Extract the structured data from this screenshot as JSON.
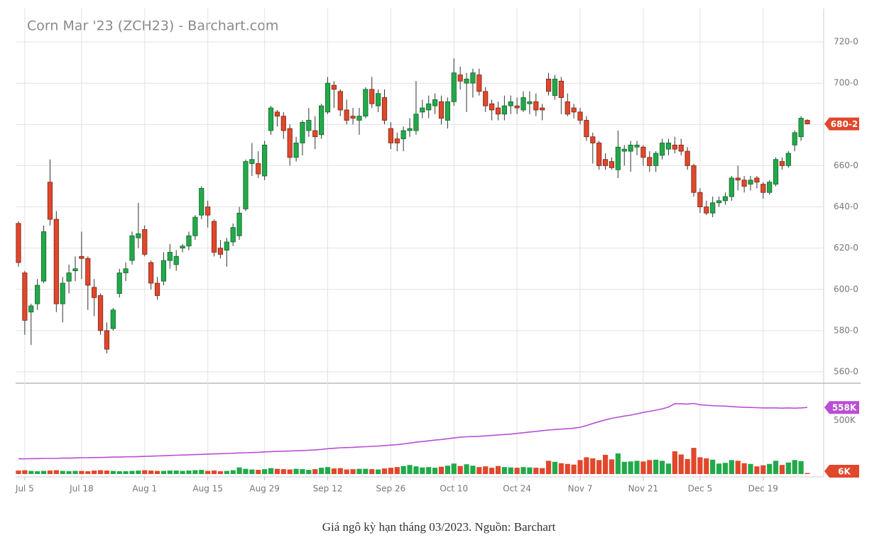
{
  "chart_data": {
    "type": "candlestick",
    "title": "Corn Mar '23 (ZCH23) - Barchart.com",
    "categories": [
      null,
      "Jul 5",
      null,
      null,
      null,
      null,
      null,
      null,
      null,
      null,
      "Jul 18",
      null,
      null,
      null,
      null,
      null,
      null,
      null,
      null,
      null,
      "Aug 1",
      null,
      null,
      null,
      null,
      null,
      null,
      null,
      null,
      null,
      "Aug 15",
      null,
      null,
      null,
      null,
      null,
      null,
      null,
      null,
      "Aug 29",
      null,
      null,
      null,
      null,
      null,
      null,
      null,
      null,
      null,
      "Sep 12",
      null,
      null,
      null,
      null,
      null,
      null,
      null,
      null,
      null,
      "Sep 26",
      null,
      null,
      null,
      null,
      null,
      null,
      null,
      null,
      null,
      "Oct 10",
      null,
      null,
      null,
      null,
      null,
      null,
      null,
      null,
      null,
      "Oct 24",
      null,
      null,
      null,
      null,
      null,
      null,
      null,
      null,
      null,
      "Nov 7",
      null,
      null,
      null,
      null,
      null,
      null,
      null,
      null,
      null,
      "Nov 21",
      null,
      null,
      null,
      null,
      null,
      null,
      null,
      null,
      "Dec 5",
      null,
      null,
      null,
      null,
      null,
      null,
      null,
      null,
      null,
      "Dec 19",
      null,
      null,
      null,
      null,
      null,
      null,
      null
    ],
    "open": [
      632,
      608,
      589,
      593,
      604,
      652,
      634,
      593,
      604,
      609,
      616,
      615,
      601,
      597,
      580,
      581,
      598,
      608,
      614,
      625,
      629,
      613,
      603,
      604,
      614,
      612,
      620,
      621,
      626,
      636,
      640,
      633,
      620,
      619,
      623,
      626,
      639,
      661,
      661,
      655,
      677,
      686,
      684,
      678,
      664,
      671,
      677,
      677,
      675,
      686,
      699,
      696,
      687,
      684,
      682,
      684,
      697,
      689,
      693,
      678,
      673,
      673,
      677,
      677,
      686,
      687,
      689,
      691,
      682,
      691,
      704,
      700,
      700,
      704,
      696,
      690,
      688,
      685,
      689,
      689,
      687,
      690,
      691,
      688,
      702,
      694,
      701,
      691,
      688,
      686,
      682,
      674,
      671,
      663,
      662,
      658,
      667,
      667,
      669,
      669,
      664,
      660,
      665,
      668,
      670,
      670,
      667,
      660,
      647,
      640,
      637,
      642,
      643,
      645,
      654,
      653,
      651,
      654,
      651,
      647,
      651,
      662,
      660,
      670,
      674,
      682
    ],
    "high": [
      633,
      609,
      593,
      605,
      631,
      663,
      638,
      606,
      612,
      616,
      628,
      616,
      605,
      598,
      584,
      591,
      610,
      613,
      628,
      642,
      631,
      614,
      606,
      618,
      622,
      619,
      622,
      628,
      636,
      650,
      643,
      634,
      624,
      625,
      632,
      640,
      663,
      671,
      667,
      672,
      689,
      687,
      686,
      680,
      674,
      682,
      688,
      684,
      690,
      703,
      701,
      697,
      692,
      688,
      688,
      698,
      703,
      697,
      697,
      681,
      676,
      679,
      683,
      701,
      692,
      694,
      695,
      694,
      693,
      712,
      708,
      705,
      707,
      707,
      698,
      692,
      691,
      694,
      694,
      693,
      696,
      696,
      695,
      690,
      705,
      704,
      703,
      695,
      690,
      688,
      684,
      676,
      672,
      666,
      664,
      677,
      670,
      672,
      672,
      670,
      667,
      667,
      673,
      673,
      674,
      673,
      669,
      661,
      649,
      643,
      645,
      645,
      647,
      655,
      660,
      655,
      655,
      655,
      652,
      653,
      664,
      664,
      667,
      677,
      684,
      682.5
    ],
    "low": [
      611,
      578,
      573,
      590,
      603,
      631,
      589,
      584,
      598,
      604,
      605,
      590,
      587,
      578,
      569,
      580,
      596,
      604,
      612,
      620,
      616,
      600,
      595,
      602,
      610,
      609,
      618,
      619,
      624,
      634,
      630,
      616,
      615,
      611,
      621,
      624,
      638,
      655,
      654,
      653,
      675,
      679,
      673,
      660,
      662,
      665,
      674,
      668,
      673,
      685,
      688,
      684,
      680,
      680,
      675,
      683,
      688,
      686,
      680,
      668,
      667,
      667,
      674,
      675,
      683,
      683,
      685,
      680,
      678,
      689,
      697,
      686,
      693,
      694,
      686,
      682,
      682,
      682,
      685,
      685,
      686,
      685,
      684,
      682,
      694,
      692,
      685,
      684,
      683,
      680,
      672,
      661,
      658,
      658,
      658,
      654,
      660,
      657,
      665,
      660,
      657,
      657,
      663,
      665,
      666,
      665,
      658,
      645,
      637,
      636,
      635,
      640,
      641,
      643,
      648,
      647,
      648,
      649,
      644,
      646,
      650,
      658,
      659,
      667,
      672,
      680
    ],
    "close": [
      613,
      585,
      592,
      602,
      628,
      634,
      593,
      603,
      608,
      610,
      615,
      602,
      596,
      580,
      571,
      590,
      608,
      610,
      626,
      627,
      617,
      603,
      597,
      614,
      618,
      616,
      621,
      626,
      635,
      649,
      636,
      618,
      617,
      623,
      630,
      637,
      662,
      663,
      656,
      670,
      688,
      684,
      677,
      664,
      671,
      681,
      682,
      674,
      689,
      700,
      697,
      687,
      682,
      683,
      684,
      697,
      690,
      695,
      682,
      671,
      671,
      677,
      678,
      685,
      688,
      690,
      692,
      683,
      691,
      705,
      701,
      702,
      705,
      696,
      689,
      687,
      685,
      689,
      691,
      688,
      693,
      691,
      687,
      687,
      696,
      702,
      693,
      685,
      686,
      682,
      674,
      671,
      660,
      660,
      659,
      669,
      668,
      670,
      670,
      664,
      660,
      666,
      671,
      671,
      668,
      667,
      660,
      647,
      640,
      637,
      642,
      643,
      645,
      654,
      653,
      650,
      653,
      652,
      647,
      652,
      663,
      660,
      666,
      676,
      683,
      680.25
    ],
    "value_labels": [
      null,
      null,
      null,
      null,
      null,
      null,
      null,
      null,
      null,
      null,
      null,
      null,
      null,
      null,
      null,
      null,
      null,
      null,
      null,
      null,
      null,
      null,
      null,
      null,
      null,
      null,
      null,
      null,
      null,
      null,
      null,
      null,
      null,
      null,
      null,
      null,
      null,
      null,
      null,
      null,
      null,
      null,
      null,
      null,
      null,
      null,
      null,
      null,
      null,
      null,
      null,
      null,
      null,
      null,
      null,
      null,
      null,
      null,
      null,
      null,
      null,
      null,
      null,
      null,
      null,
      null,
      null,
      null,
      null,
      null,
      null,
      null,
      null,
      null,
      null,
      null,
      null,
      null,
      null,
      null,
      null,
      null,
      null,
      null,
      null,
      null,
      null,
      null,
      null,
      null,
      null,
      null,
      null,
      null,
      null,
      null,
      null,
      null,
      null,
      null,
      null,
      null,
      null,
      null,
      null,
      null,
      null,
      null,
      null,
      null,
      null,
      null,
      null,
      null,
      null,
      null,
      null,
      null,
      null,
      null,
      null,
      null,
      null,
      null,
      null,
      "680-2"
    ],
    "up_color": "#22a94a",
    "down_color": "#e0472b",
    "ylim": [
      554.5,
      736.2
    ],
    "yticks": [
      {
        "value": 560,
        "label": "560-0"
      },
      {
        "value": 580,
        "label": "580-0"
      },
      {
        "value": 600,
        "label": "600-0"
      },
      {
        "value": 620,
        "label": "620-0"
      },
      {
        "value": 640,
        "label": "640-0"
      },
      {
        "value": 660,
        "label": "660-0"
      },
      {
        "value": 680,
        "label": "680-0"
      },
      {
        "value": 700,
        "label": "700-0"
      },
      {
        "value": 720,
        "label": "720-0"
      }
    ],
    "grid": true,
    "volume": {
      "values": [
        20,
        22,
        18,
        16,
        18,
        20,
        22,
        18,
        16,
        18,
        18,
        16,
        20,
        22,
        20,
        18,
        16,
        16,
        18,
        20,
        22,
        20,
        18,
        18,
        20,
        20,
        18,
        20,
        22,
        24,
        18,
        20,
        16,
        18,
        22,
        38,
        30,
        26,
        24,
        28,
        34,
        30,
        28,
        26,
        30,
        28,
        24,
        28,
        36,
        40,
        32,
        34,
        26,
        28,
        30,
        30,
        28,
        26,
        32,
        36,
        40,
        46,
        52,
        44,
        38,
        40,
        36,
        42,
        48,
        60,
        46,
        56,
        48,
        40,
        44,
        36,
        46,
        40,
        38,
        36,
        40,
        38,
        36,
        34,
        76,
        70,
        62,
        58,
        54,
        80,
        96,
        90,
        80,
        110,
        84,
        118,
        70,
        72,
        76,
        72,
        80,
        82,
        76,
        60,
        130,
        112,
        86,
        150,
        96,
        90,
        82,
        60,
        64,
        80,
        76,
        62,
        58,
        44,
        50,
        58,
        76,
        52,
        66,
        80,
        74,
        6
      ],
      "value_labels": [
        null,
        null,
        null,
        null,
        null,
        null,
        null,
        null,
        null,
        null,
        null,
        null,
        null,
        null,
        null,
        null,
        null,
        null,
        null,
        null,
        null,
        null,
        null,
        null,
        null,
        null,
        null,
        null,
        null,
        null,
        null,
        null,
        null,
        null,
        null,
        null,
        null,
        null,
        null,
        null,
        null,
        null,
        null,
        null,
        null,
        null,
        null,
        null,
        null,
        null,
        null,
        null,
        null,
        null,
        null,
        null,
        null,
        null,
        null,
        null,
        null,
        null,
        null,
        null,
        null,
        null,
        null,
        null,
        null,
        null,
        null,
        null,
        null,
        null,
        null,
        null,
        null,
        null,
        null,
        null,
        null,
        null,
        null,
        null,
        null,
        null,
        null,
        null,
        null,
        null,
        null,
        null,
        null,
        null,
        null,
        null,
        null,
        null,
        null,
        null,
        null,
        null,
        null,
        null,
        null,
        null,
        null,
        null,
        null,
        null,
        null,
        null,
        null,
        null,
        null,
        null,
        null,
        null,
        null,
        null,
        null,
        null,
        null,
        null,
        null,
        "6K"
      ],
      "ylim": [
        0,
        500
      ]
    },
    "open_interest": {
      "color": "#b84fd6",
      "values": [
        330,
        330,
        331,
        331,
        332,
        332,
        332,
        333,
        333,
        334,
        335,
        335,
        336,
        336,
        337,
        338,
        338,
        339,
        339,
        340,
        341,
        342,
        343,
        344,
        345,
        346,
        347,
        348,
        349,
        350,
        351,
        352,
        353,
        354,
        355,
        356,
        357,
        358,
        359,
        361,
        362,
        363,
        364,
        365,
        366,
        367,
        368,
        370,
        372,
        375,
        377,
        379,
        380,
        381,
        383,
        384,
        385,
        387,
        389,
        391,
        393,
        396,
        400,
        404,
        407,
        410,
        413,
        416,
        419,
        423,
        426,
        428,
        429,
        430,
        432,
        434,
        436,
        438,
        440,
        443,
        446,
        449,
        452,
        455,
        458,
        460,
        462,
        464,
        466,
        470,
        478,
        487,
        495,
        503,
        510,
        515,
        520,
        524,
        530,
        536,
        541,
        546,
        552,
        560,
        575,
        574,
        573,
        576,
        570,
        568,
        566,
        565,
        564,
        562,
        560,
        559,
        558,
        557,
        556,
        556,
        556,
        555,
        556,
        555,
        556,
        558
      ],
      "value_labels": [
        null,
        null,
        null,
        null,
        null,
        null,
        null,
        null,
        null,
        null,
        null,
        null,
        null,
        null,
        null,
        null,
        null,
        null,
        null,
        null,
        null,
        null,
        null,
        null,
        null,
        null,
        null,
        null,
        null,
        null,
        null,
        null,
        null,
        null,
        null,
        null,
        null,
        null,
        null,
        null,
        null,
        null,
        null,
        null,
        null,
        null,
        null,
        null,
        null,
        null,
        null,
        null,
        null,
        null,
        null,
        null,
        null,
        null,
        null,
        null,
        null,
        null,
        null,
        null,
        null,
        null,
        null,
        null,
        null,
        null,
        null,
        null,
        null,
        null,
        null,
        null,
        null,
        null,
        null,
        null,
        null,
        null,
        null,
        null,
        null,
        null,
        null,
        null,
        null,
        null,
        null,
        null,
        null,
        null,
        null,
        null,
        null,
        null,
        null,
        null,
        null,
        null,
        null,
        null,
        null,
        null,
        null,
        null,
        null,
        null,
        null,
        null,
        null,
        null,
        null,
        null,
        null,
        null,
        null,
        null,
        null,
        null,
        null,
        null,
        null,
        "558K"
      ],
      "ylim": [
        250,
        650
      ],
      "yticks": [
        {
          "value": 500,
          "label": "500K"
        }
      ]
    }
  },
  "caption": "Giá ngô kỳ hạn tháng 03/2023. Nguồn: Barchart"
}
